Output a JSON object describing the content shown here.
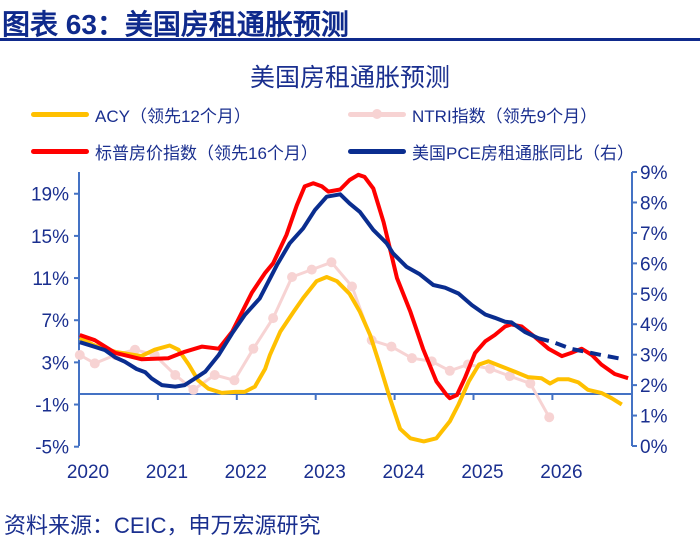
{
  "figure_title": "图表 63：美国房租通胀预测",
  "source": "资料来源：CEIC，申万宏源研究",
  "colors": {
    "acy": "#ffc000",
    "ntri": "#f7d3d3",
    "sp": "#ff0000",
    "pce": "#0a2d8f",
    "axis": "#4472c4",
    "text": "#1a2f8f"
  },
  "chart_data": {
    "type": "line",
    "title": "美国房租通胀预测",
    "legend_placement": "top",
    "grid": false,
    "x_ticks": [
      "2020",
      "2021",
      "2022",
      "2023",
      "2024",
      "2025",
      "2026"
    ],
    "xlim": [
      2020,
      2027
    ],
    "y_left": {
      "ticks": [
        "19%",
        "15%",
        "11%",
        "7%",
        "3%",
        "-1%",
        "-5%"
      ],
      "tick_values": [
        19,
        15,
        11,
        7,
        3,
        -1,
        -5
      ],
      "ylim": [
        -5,
        19
      ]
    },
    "y_right": {
      "ticks": [
        "9%",
        "8%",
        "7%",
        "6%",
        "5%",
        "4%",
        "3%",
        "2%",
        "1%",
        "0%"
      ],
      "tick_values": [
        9,
        8,
        7,
        6,
        5,
        4,
        3,
        2,
        1,
        0
      ],
      "ylim": [
        0,
        9
      ]
    },
    "series": [
      {
        "key": "acy",
        "name": "ACY（领先12个月）",
        "axis": "left",
        "markers": false,
        "x": [
          2020.01,
          2020.2,
          2020.46,
          2020.79,
          2020.96,
          2021.15,
          2021.26,
          2021.39,
          2021.51,
          2021.64,
          2021.81,
          2021.98,
          2022.1,
          2022.23,
          2022.36,
          2022.42,
          2022.55,
          2022.72,
          2022.84,
          2023.01,
          2023.14,
          2023.27,
          2023.43,
          2023.56,
          2023.69,
          2023.81,
          2023.94,
          2024.07,
          2024.2,
          2024.37,
          2024.53,
          2024.7,
          2024.81,
          2024.94,
          2025.07,
          2025.19,
          2025.36,
          2025.53,
          2025.69,
          2025.86,
          2025.97,
          2026.07,
          2026.2,
          2026.33,
          2026.45,
          2026.62,
          2026.75,
          2026.88
        ],
        "y": [
          5.3,
          4.6,
          4.0,
          3.6,
          4.2,
          4.6,
          4.2,
          2.8,
          1.3,
          0.5,
          0.1,
          0.2,
          0.2,
          0.7,
          2.4,
          3.7,
          5.9,
          7.8,
          9.1,
          10.7,
          11.1,
          10.7,
          9.5,
          7.8,
          5.6,
          2.8,
          -0.4,
          -3.3,
          -4.2,
          -4.5,
          -4.2,
          -2.6,
          -1.0,
          1.2,
          2.8,
          3.1,
          2.6,
          2.1,
          1.6,
          1.5,
          1.0,
          1.4,
          1.4,
          1.1,
          0.4,
          0.1,
          -0.4,
          -1.0
        ]
      },
      {
        "key": "ntri",
        "name": "NTRI指数（领先9个月）",
        "axis": "left",
        "markers": true,
        "x": [
          2020.01,
          2020.2,
          2020.46,
          2020.71,
          2020.96,
          2021.22,
          2021.45,
          2021.72,
          2021.97,
          2022.21,
          2022.46,
          2022.7,
          2022.95,
          2023.2,
          2023.46,
          2023.71,
          2023.96,
          2024.22,
          2024.47,
          2024.7,
          2024.93,
          2025.21,
          2025.46,
          2025.72,
          2025.96
        ],
        "y": [
          3.7,
          2.9,
          3.7,
          4.2,
          3.7,
          1.8,
          0.4,
          1.8,
          1.3,
          4.3,
          7.2,
          11.1,
          11.8,
          12.5,
          10.2,
          5.1,
          4.5,
          3.4,
          3.1,
          2.2,
          2.8,
          2.4,
          1.7,
          1.0,
          -2.2
        ]
      },
      {
        "key": "sp",
        "name": "标普房价指数（领先16个月）",
        "axis": "left",
        "markers": false,
        "x": [
          2020.01,
          2020.2,
          2020.46,
          2020.79,
          2021.13,
          2021.34,
          2021.56,
          2021.77,
          2021.94,
          2022.19,
          2022.36,
          2022.46,
          2022.63,
          2022.76,
          2022.86,
          2022.97,
          2023.08,
          2023.16,
          2023.31,
          2023.43,
          2023.54,
          2023.62,
          2023.73,
          2023.86,
          2024.03,
          2024.2,
          2024.36,
          2024.53,
          2024.66,
          2024.7,
          2024.79,
          2024.89,
          2025.02,
          2025.15,
          2025.27,
          2025.4,
          2025.48,
          2025.61,
          2025.78,
          2025.95,
          2026.12,
          2026.24,
          2026.37,
          2026.5,
          2026.62,
          2026.79,
          2026.96
        ],
        "y": [
          5.6,
          5.1,
          3.9,
          3.3,
          3.4,
          4.0,
          4.5,
          4.3,
          5.9,
          9.6,
          11.5,
          12.4,
          15.1,
          17.9,
          19.7,
          20.0,
          19.7,
          19.2,
          19.4,
          20.3,
          20.8,
          20.6,
          19.5,
          16.3,
          11.0,
          7.8,
          4.3,
          1.2,
          -0.1,
          -0.4,
          -0.1,
          1.5,
          3.9,
          5.0,
          5.6,
          6.4,
          6.6,
          6.4,
          5.4,
          4.3,
          3.6,
          3.9,
          4.3,
          3.7,
          2.8,
          1.9,
          1.5
        ]
      },
      {
        "key": "pce",
        "name": "美国PCE房租通胀同比（右）",
        "axis": "right",
        "markers": false,
        "forecast_from": 2025.82,
        "x": [
          2020.01,
          2020.2,
          2020.33,
          2020.46,
          2020.58,
          2020.73,
          2020.84,
          2020.92,
          2021.05,
          2021.22,
          2021.34,
          2021.47,
          2021.6,
          2021.77,
          2021.94,
          2022.1,
          2022.29,
          2022.51,
          2022.67,
          2022.84,
          2022.99,
          2023.14,
          2023.31,
          2023.43,
          2023.56,
          2023.73,
          2023.9,
          2023.98,
          2024.15,
          2024.32,
          2024.49,
          2024.64,
          2024.81,
          2024.98,
          2025.15,
          2025.27,
          2025.4,
          2025.48,
          2025.65,
          2025.82,
          2025.99,
          2026.24,
          2026.41,
          2026.62,
          2026.88
        ],
        "y": [
          3.41,
          3.26,
          3.15,
          2.91,
          2.77,
          2.53,
          2.42,
          2.22,
          2.0,
          1.95,
          2.0,
          2.22,
          2.44,
          2.99,
          3.7,
          4.3,
          4.85,
          5.95,
          6.66,
          7.15,
          7.75,
          8.19,
          8.27,
          7.97,
          7.69,
          7.1,
          6.66,
          6.33,
          5.89,
          5.64,
          5.29,
          5.2,
          5.01,
          4.63,
          4.32,
          4.21,
          4.08,
          4.06,
          3.75,
          3.54,
          3.43,
          3.19,
          3.1,
          2.99,
          2.86
        ]
      }
    ]
  }
}
